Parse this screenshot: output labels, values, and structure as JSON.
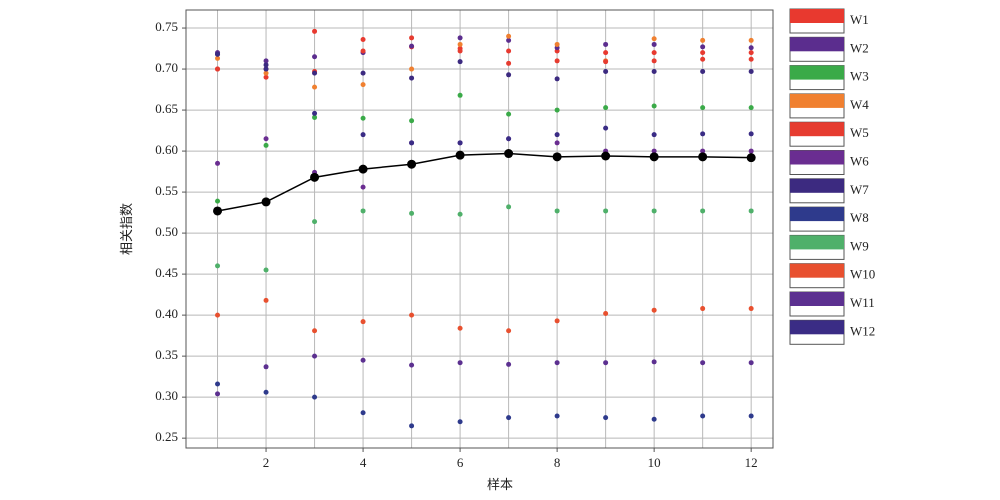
{
  "chart_data": {
    "type": "scatter",
    "x": [
      1,
      2,
      3,
      4,
      5,
      6,
      7,
      8,
      9,
      10,
      11,
      12
    ],
    "x_label": "样本",
    "y_label": "相关指数",
    "xlim": [
      0.35,
      12.45
    ],
    "ylim": [
      0.238,
      0.772
    ],
    "xticks": [
      2,
      4,
      6,
      8,
      10,
      12
    ],
    "x_minor_ticks": [
      1,
      3,
      5,
      7,
      9,
      11
    ],
    "yticks": [
      {
        "value": 0.25,
        "label": "0.25"
      },
      {
        "value": 0.3,
        "label": "0.30"
      },
      {
        "value": 0.35,
        "label": "0.35"
      },
      {
        "value": 0.4,
        "label": "0.40"
      },
      {
        "value": 0.45,
        "label": "0.45"
      },
      {
        "value": 0.5,
        "label": "0.50"
      },
      {
        "value": 0.55,
        "label": "0.55"
      },
      {
        "value": 0.6,
        "label": "0.60"
      },
      {
        "value": 0.65,
        "label": "0.65"
      },
      {
        "value": 0.7,
        "label": "0.70"
      },
      {
        "value": 0.75,
        "label": "0.75"
      }
    ],
    "grid": true,
    "legend": "right",
    "series": [
      {
        "name": "W1",
        "color": "#e8392f",
        "values": [
          0.7,
          0.69,
          0.746,
          0.736,
          0.727,
          0.725,
          0.722,
          0.722,
          0.72,
          0.72,
          0.72,
          0.72
        ]
      },
      {
        "name": "W2",
        "color": "#5b2d8e",
        "values": [
          0.72,
          0.71,
          0.715,
          0.72,
          0.728,
          0.738,
          0.735,
          0.726,
          0.73,
          0.73,
          0.727,
          0.726
        ]
      },
      {
        "name": "W3",
        "color": "#3aaa48",
        "values": [
          0.539,
          0.607,
          0.641,
          0.64,
          0.637,
          0.668,
          0.645,
          0.65,
          0.653,
          0.655,
          0.653,
          0.653
        ]
      },
      {
        "name": "W4",
        "color": "#f08030",
        "values": [
          0.713,
          0.695,
          0.678,
          0.681,
          0.7,
          0.73,
          0.74,
          0.73,
          0.71,
          0.737,
          0.735,
          0.735
        ]
      },
      {
        "name": "W5",
        "color": "#e63c30",
        "values": [
          0.7,
          0.7,
          0.697,
          0.722,
          0.738,
          0.722,
          0.707,
          0.71,
          0.709,
          0.71,
          0.712,
          0.712
        ]
      },
      {
        "name": "W6",
        "color": "#6a2d91",
        "values": [
          0.585,
          0.615,
          0.574,
          0.556,
          0.61,
          0.61,
          0.615,
          0.61,
          0.6,
          0.6,
          0.6,
          0.6
        ]
      },
      {
        "name": "W7",
        "color": "#3c2a80",
        "values": [
          0.718,
          0.705,
          0.695,
          0.695,
          0.689,
          0.709,
          0.693,
          0.688,
          0.697,
          0.697,
          0.697,
          0.697
        ]
      },
      {
        "name": "W8",
        "color": "#2e3a8c",
        "values": [
          0.316,
          0.306,
          0.3,
          0.281,
          0.265,
          0.27,
          0.275,
          0.277,
          0.275,
          0.273,
          0.277,
          0.277
        ]
      },
      {
        "name": "W9",
        "color": "#4fb06a",
        "values": [
          0.46,
          0.455,
          0.514,
          0.527,
          0.524,
          0.523,
          0.532,
          0.527,
          0.527,
          0.527,
          0.527,
          0.527
        ]
      },
      {
        "name": "W10",
        "color": "#e8502f",
        "values": [
          0.4,
          0.418,
          0.381,
          0.392,
          0.4,
          0.384,
          0.381,
          0.393,
          0.402,
          0.406,
          0.408,
          0.408
        ]
      },
      {
        "name": "W11",
        "color": "#5c3090",
        "values": [
          0.304,
          0.337,
          0.35,
          0.345,
          0.339,
          0.342,
          0.34,
          0.342,
          0.342,
          0.343,
          0.342,
          0.342
        ]
      },
      {
        "name": "W12",
        "color": "#3a2c85",
        "values": [
          0.718,
          0.7,
          0.646,
          0.62,
          0.61,
          0.61,
          0.615,
          0.62,
          0.628,
          0.62,
          0.621,
          0.621
        ]
      },
      {
        "color": "#000000",
        "line": true,
        "values": [
          0.527,
          0.538,
          0.568,
          0.578,
          0.584,
          0.595,
          0.597,
          0.593,
          0.594,
          0.593,
          0.593,
          0.592
        ]
      }
    ]
  }
}
